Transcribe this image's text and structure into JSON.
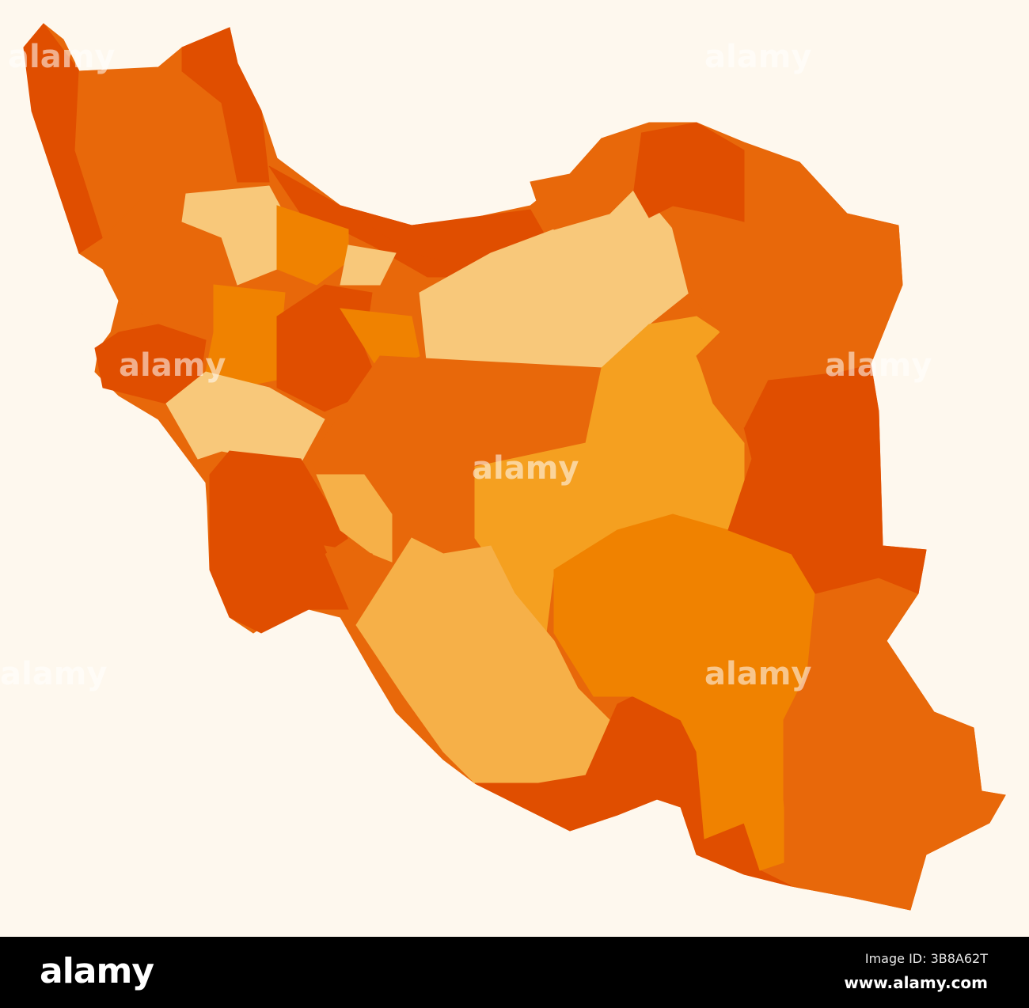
{
  "palette": {
    "background": "#fef8ee",
    "dark": "#e04e00",
    "mid": "#e8680a",
    "orange": "#f08200",
    "light": "#f5a020",
    "tan": "#f6b048",
    "pale": "#f8c87a"
  },
  "watermark": {
    "text": "alamy",
    "dot": "a"
  },
  "footer": {
    "logo": "alamy",
    "image_id": "Image ID: 3B8A62T",
    "site": "www.alamy.com"
  }
}
